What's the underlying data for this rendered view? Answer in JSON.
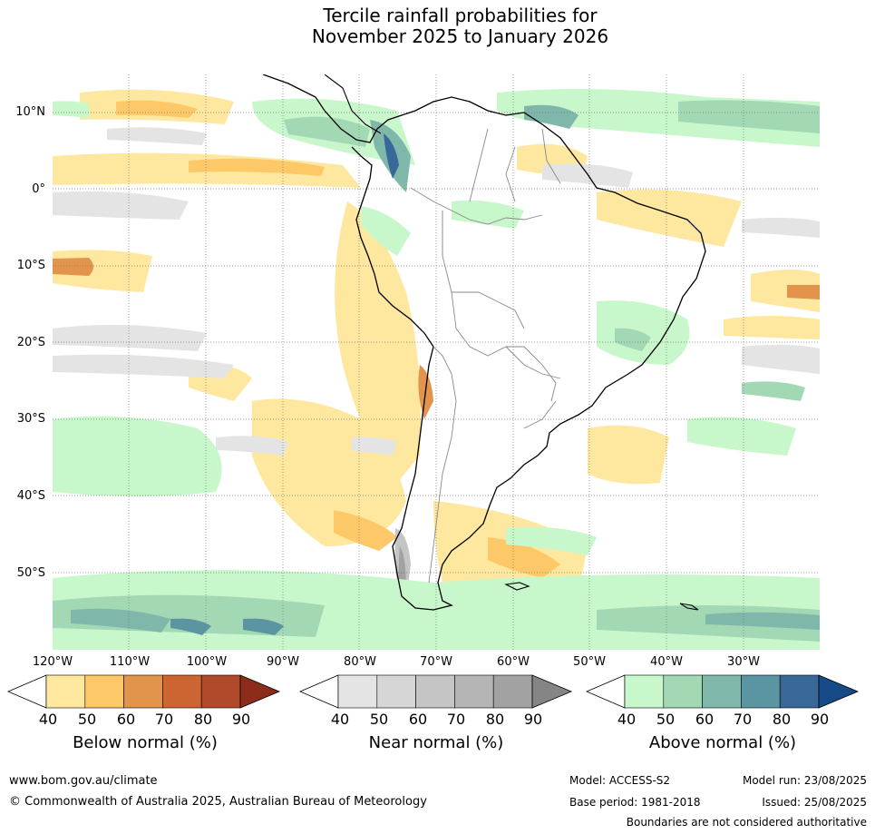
{
  "title": {
    "line1": "Tercile rainfall probabilities for",
    "line2": "November 2025 to January 2026"
  },
  "map": {
    "region": "South America",
    "lat_labels": [
      "10°N",
      "0°",
      "10°S",
      "20°S",
      "30°S",
      "40°S",
      "50°S"
    ],
    "lon_labels": [
      "120°W",
      "110°W",
      "100°W",
      "90°W",
      "80°W",
      "70°W",
      "60°W",
      "50°W",
      "40°W",
      "30°W"
    ]
  },
  "legends": {
    "below": {
      "title": "Below normal (%)",
      "ticks": [
        "40",
        "50",
        "60",
        "70",
        "80",
        "90"
      ],
      "colors": [
        "#ffffff",
        "#fee8a0",
        "#fdc968",
        "#e3944c",
        "#cc6532",
        "#b04a2a",
        "#8e2c1c"
      ]
    },
    "near": {
      "title": "Near normal (%)",
      "ticks": [
        "40",
        "50",
        "60",
        "70",
        "80",
        "90"
      ],
      "colors": [
        "#ffffff",
        "#e4e4e4",
        "#d6d6d6",
        "#c5c5c5",
        "#b5b5b5",
        "#a2a2a2",
        "#858585"
      ]
    },
    "above": {
      "title": "Above normal (%)",
      "ticks": [
        "40",
        "50",
        "60",
        "70",
        "80",
        "90"
      ],
      "colors": [
        "#ffffff",
        "#c8f7cc",
        "#a3d8b5",
        "#7fb8ab",
        "#5b95a2",
        "#386898",
        "#154a87"
      ]
    }
  },
  "footer": {
    "website": "www.bom.gov.au/climate",
    "copyright": "© Commonwealth of Australia 2025, Australian Bureau of Meteorology",
    "model": "Model: ACCESS-S2",
    "base_period": "Base period: 1981-2018",
    "model_run": "Model run: 23/08/2025",
    "issued": "Issued: 25/08/2025",
    "disclaimer": "Boundaries are not considered authoritative"
  }
}
